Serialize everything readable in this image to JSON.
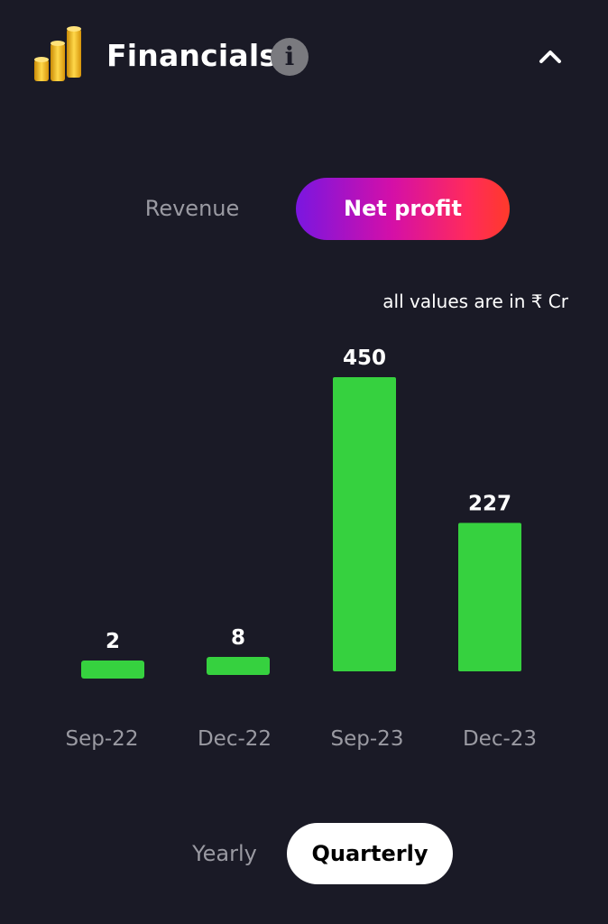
{
  "header": {
    "title": "Financials",
    "info_icon": "info-icon",
    "coins_icon": "stacked-coins-icon",
    "collapse_icon": "chevron-up-icon"
  },
  "metric_toggle": {
    "options": [
      "Revenue",
      "Net profit"
    ],
    "selected": "Net profit"
  },
  "units_note": "all values are in ₹ Cr",
  "period_toggle": {
    "options": [
      "Yearly",
      "Quarterly"
    ],
    "selected": "Quarterly"
  },
  "colors": {
    "background": "#1a1a26",
    "bar": "#36d13f",
    "muted_text": "#9a9aa2"
  },
  "chart_data": {
    "type": "bar",
    "categories": [
      "Sep-22",
      "Dec-22",
      "Sep-23",
      "Dec-23"
    ],
    "values": [
      2,
      8,
      450,
      227
    ],
    "value_labels": [
      "2",
      "8",
      "450",
      "227"
    ],
    "ylim": [
      0,
      450
    ],
    "grid": false
  }
}
